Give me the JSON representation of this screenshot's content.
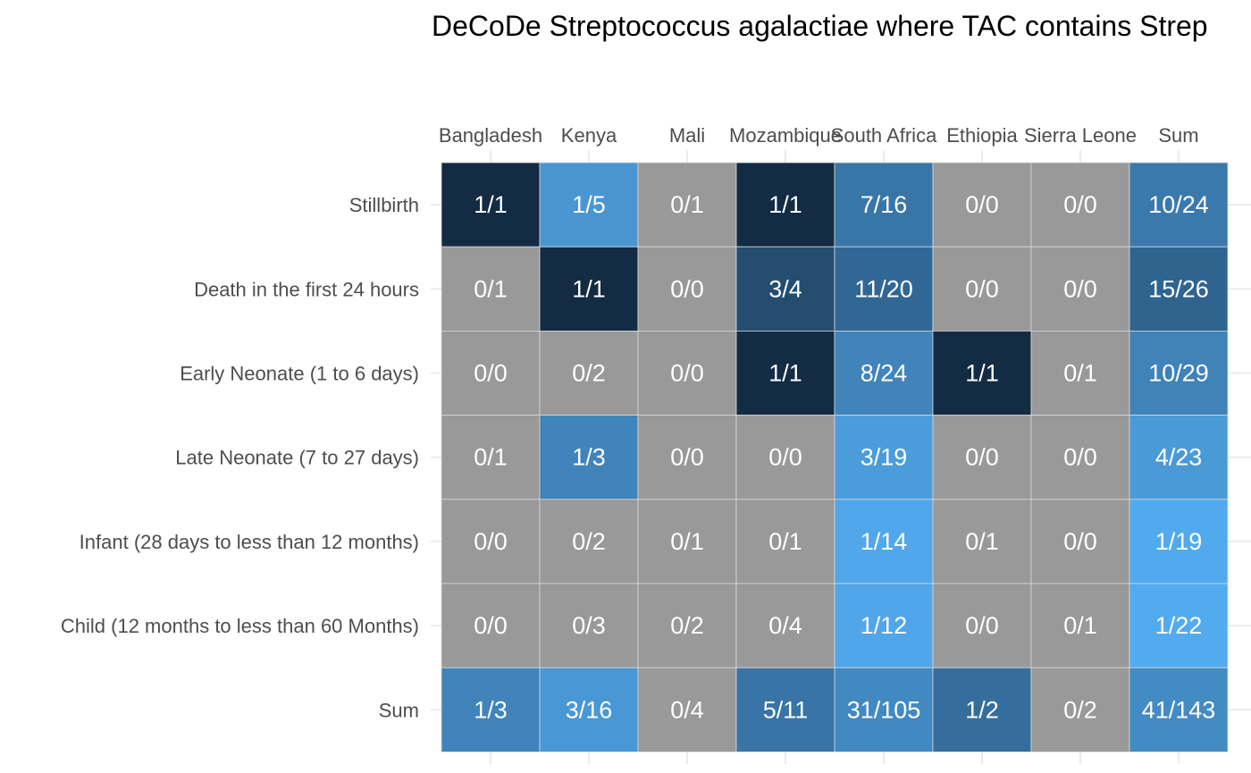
{
  "chart_data": {
    "type": "heatmap",
    "title": "DeCoDe Streptococcus agalactiae where TAC contains Strep",
    "xlabel": "",
    "ylabel": "",
    "x_axis_position": "top",
    "grid": true,
    "legend": "none",
    "columns": [
      "Bangladesh",
      "Kenya",
      "Mali",
      "Mozambique",
      "South Africa",
      "Ethiopia",
      "Sierra Leone",
      "Sum"
    ],
    "rows": [
      "Stillbirth",
      "Death in the first 24 hours",
      "Early Neonate (1 to 6 days)",
      "Late Neonate (7 to 27 days)",
      "Infant (28 days to less than 12 months)",
      "Child (12 months to less than 60 Months)",
      "Sum"
    ],
    "cells": [
      [
        "1/1",
        "1/5",
        "0/1",
        "1/1",
        "7/16",
        "0/0",
        "0/0",
        "10/24"
      ],
      [
        "0/1",
        "1/1",
        "0/0",
        "3/4",
        "11/20",
        "0/0",
        "0/0",
        "15/26"
      ],
      [
        "0/0",
        "0/2",
        "0/0",
        "1/1",
        "8/24",
        "1/1",
        "0/1",
        "10/29"
      ],
      [
        "0/1",
        "1/3",
        "0/0",
        "0/0",
        "3/19",
        "0/0",
        "0/0",
        "4/23"
      ],
      [
        "0/0",
        "0/2",
        "0/1",
        "0/1",
        "1/14",
        "0/1",
        "0/0",
        "1/19"
      ],
      [
        "0/0",
        "0/3",
        "0/2",
        "0/4",
        "1/12",
        "0/0",
        "0/1",
        "1/22"
      ],
      [
        "1/3",
        "3/16",
        "0/4",
        "5/11",
        "31/105",
        "1/2",
        "0/2",
        "41/143"
      ]
    ],
    "colors": {
      "zero_fill": "#999999",
      "scale_low": "#56b1f7",
      "scale_high": "#132b43",
      "grid": "#ebebeb",
      "cell_border": "#d9d9d9",
      "cell_text": "#ffffff",
      "axis_text": "#4d4d4d",
      "title_text": "#000000"
    }
  }
}
